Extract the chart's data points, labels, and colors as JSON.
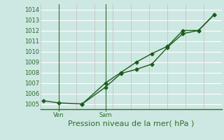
{
  "title": "Pression niveau de la mer( hPa )",
  "background_color": "#cde8e2",
  "plot_bg_color": "#cde8e2",
  "grid_color_h": "#ffffff",
  "grid_color_v": "#c8b8c8",
  "line_color": "#1a5c1a",
  "ylim": [
    1004.5,
    1014.5
  ],
  "yticks": [
    1005,
    1006,
    1007,
    1008,
    1009,
    1010,
    1011,
    1012,
    1013,
    1014
  ],
  "xtick_labels": [
    "Ven",
    "Sam"
  ],
  "xtick_positions": [
    1,
    4
  ],
  "vline_positions": [
    1,
    4
  ],
  "num_vgrid": 10,
  "series1_x": [
    0,
    1,
    2.5,
    4,
    5,
    6,
    7,
    8,
    9,
    10,
    11
  ],
  "series1_y": [
    1005.3,
    1005.1,
    1005.0,
    1006.6,
    1007.9,
    1008.3,
    1008.8,
    1010.4,
    1011.7,
    1012.0,
    1013.5
  ],
  "series2_x": [
    2.5,
    4,
    5,
    6,
    7,
    8,
    9,
    10,
    11
  ],
  "series2_y": [
    1005.0,
    1007.0,
    1008.0,
    1009.0,
    1009.8,
    1010.5,
    1012.0,
    1012.0,
    1013.5
  ],
  "xlim": [
    -0.2,
    11.5
  ],
  "marker_size": 2.5,
  "line_width": 1.0,
  "xlabel_fontsize": 8,
  "tick_fontsize": 6,
  "label_color": "#2d6e2d",
  "bottom_line_color": "#2d6e2d",
  "vline_color": "#2d6e2d"
}
